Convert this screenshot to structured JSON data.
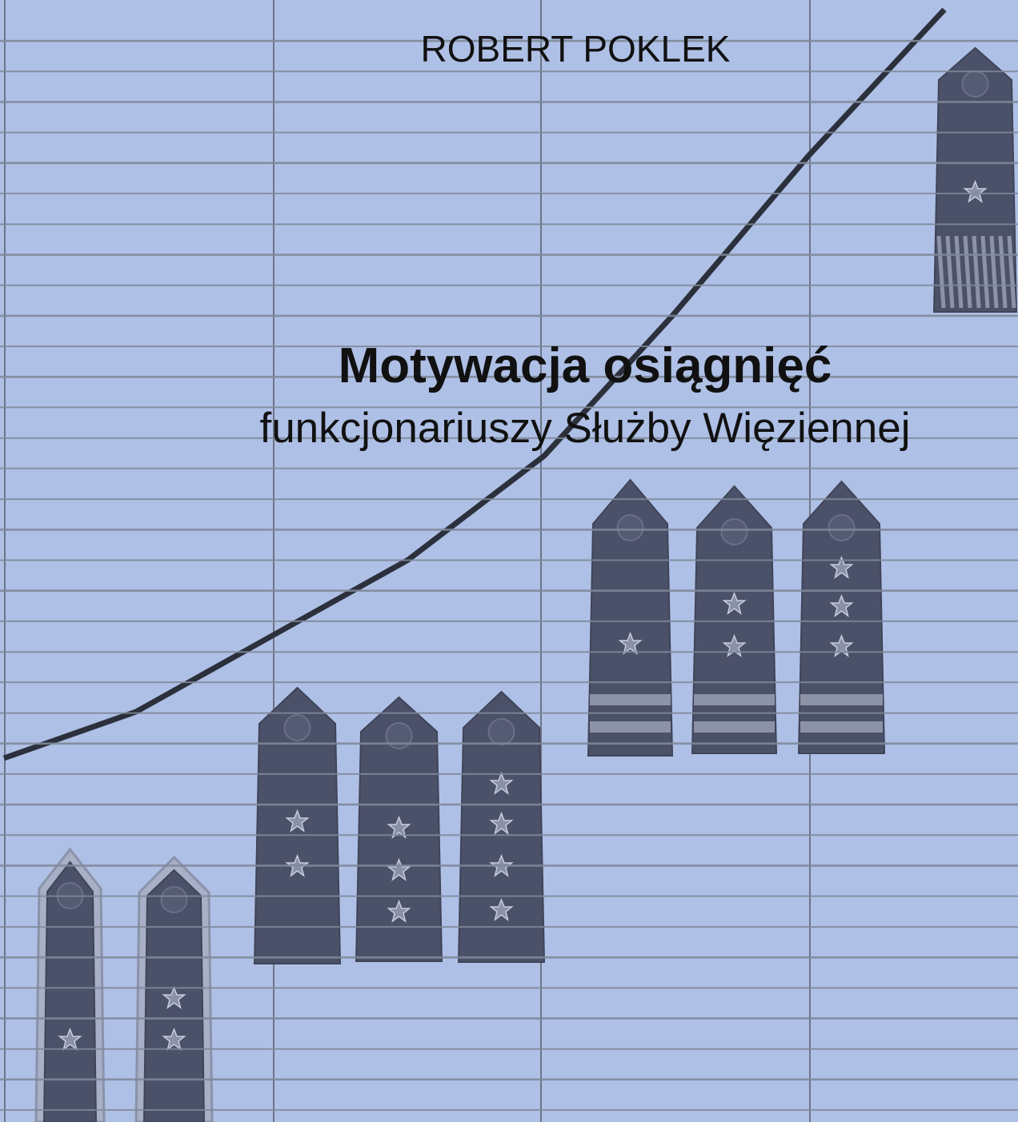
{
  "author": "ROBERT POKLEK",
  "title": "Motywacja osiągnięć",
  "subtitle": "funkcjonariuszy Służby Więziennej"
}
